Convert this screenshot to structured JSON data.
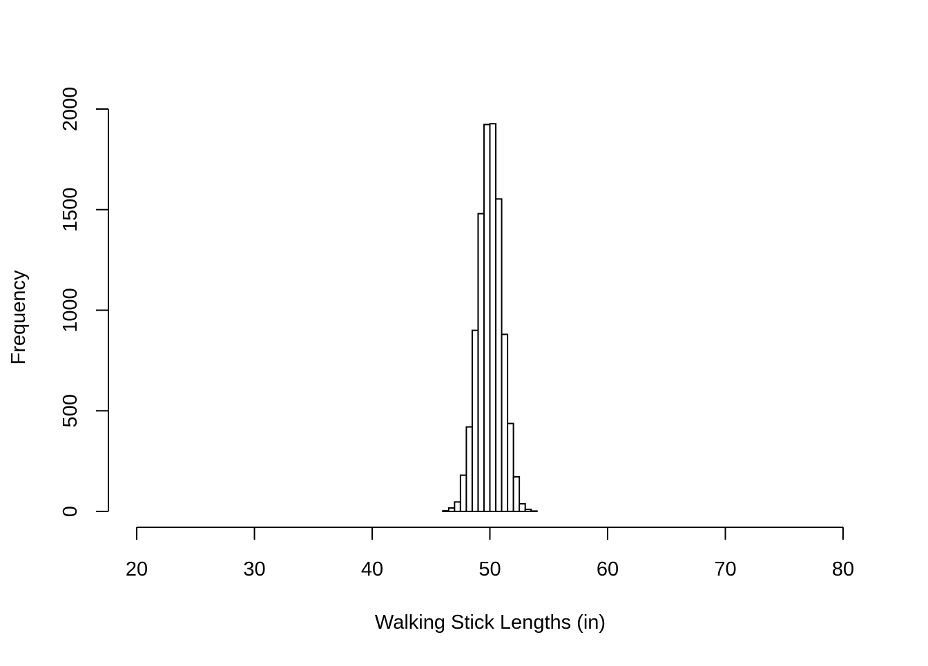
{
  "chart_data": {
    "type": "bar",
    "title": "",
    "xlabel": "Walking Stick Lengths (in)",
    "ylabel": "Frequency",
    "xlim": [
      20,
      80
    ],
    "ylim": [
      0,
      2000
    ],
    "x_ticks": [
      20,
      30,
      40,
      50,
      60,
      70,
      80
    ],
    "y_ticks": [
      0,
      500,
      1000,
      1500,
      2000
    ],
    "grid": false,
    "legend": "none",
    "colors": {
      "bar_fill": "#ffffff",
      "bar_stroke": "#000000",
      "axis": "#000000"
    },
    "bin_width": 0.5,
    "bins": [
      {
        "start": 46.0,
        "end": 46.5,
        "count": 3
      },
      {
        "start": 46.5,
        "end": 47.0,
        "count": 17
      },
      {
        "start": 47.0,
        "end": 47.5,
        "count": 47
      },
      {
        "start": 47.5,
        "end": 48.0,
        "count": 180
      },
      {
        "start": 48.0,
        "end": 48.5,
        "count": 420
      },
      {
        "start": 48.5,
        "end": 49.0,
        "count": 900
      },
      {
        "start": 49.0,
        "end": 49.5,
        "count": 1480
      },
      {
        "start": 49.5,
        "end": 50.0,
        "count": 1923
      },
      {
        "start": 50.0,
        "end": 50.5,
        "count": 1927
      },
      {
        "start": 50.5,
        "end": 51.0,
        "count": 1553
      },
      {
        "start": 51.0,
        "end": 51.5,
        "count": 880
      },
      {
        "start": 51.5,
        "end": 52.0,
        "count": 437
      },
      {
        "start": 52.0,
        "end": 52.5,
        "count": 172
      },
      {
        "start": 52.5,
        "end": 53.0,
        "count": 38
      },
      {
        "start": 53.0,
        "end": 53.5,
        "count": 10
      },
      {
        "start": 53.5,
        "end": 54.0,
        "count": 2
      }
    ]
  }
}
